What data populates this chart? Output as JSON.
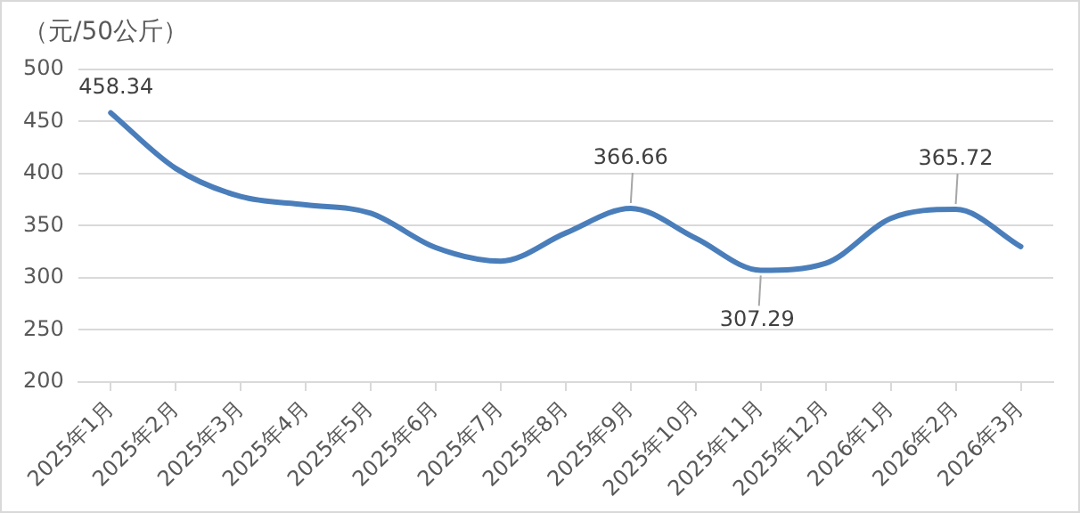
{
  "chart_data": {
    "type": "line",
    "ylabel": "（元/50公斤）",
    "categories": [
      "2025年1月",
      "2025年2月",
      "2025年3月",
      "2025年4月",
      "2025年5月",
      "2025年6月",
      "2025年7月",
      "2025年8月",
      "2025年9月",
      "2025年10月",
      "2025年11月",
      "2025年12月",
      "2026年1月",
      "2026年2月",
      "2026年3月"
    ],
    "series": [
      {
        "color": "#4a7ebb",
        "values": [
          458.34,
          405,
          378,
          370,
          362,
          329,
          316,
          343,
          366.66,
          338,
          307.29,
          314,
          357,
          365.72,
          330
        ],
        "value_labels": [
          "458.34",
          null,
          null,
          null,
          null,
          null,
          null,
          null,
          "366.66",
          null,
          "307.29",
          null,
          null,
          "365.72",
          null
        ]
      }
    ],
    "ylim": [
      200,
      500
    ],
    "yticks": [
      200,
      250,
      300,
      350,
      400,
      450,
      500
    ],
    "grid": "y",
    "legend": false,
    "marker": "none",
    "line_style": "solid"
  }
}
